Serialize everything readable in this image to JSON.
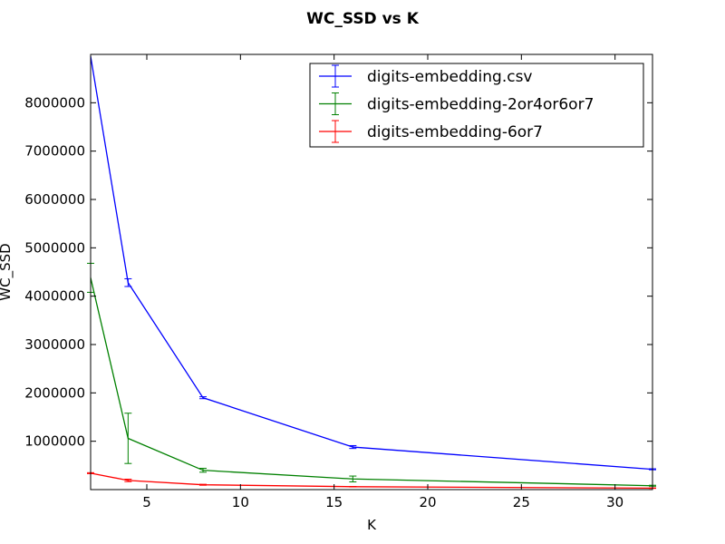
{
  "chart_data": {
    "type": "line",
    "title": "WC_SSD vs K",
    "xlabel": "K",
    "ylabel": "WC_SSD",
    "xlim": [
      2,
      32
    ],
    "ylim": [
      0,
      9000000
    ],
    "xticks": [
      5,
      10,
      15,
      20,
      25,
      30
    ],
    "yticks": [
      1000000,
      2000000,
      3000000,
      4000000,
      5000000,
      6000000,
      7000000,
      8000000
    ],
    "xtick_labels": [
      "5",
      "10",
      "15",
      "20",
      "25",
      "30"
    ],
    "ytick_labels": [
      "1000000",
      "2000000",
      "3000000",
      "4000000",
      "5000000",
      "6000000",
      "7000000",
      "8000000"
    ],
    "grid": false,
    "legend_position": "top-right",
    "x": [
      2,
      4,
      8,
      16,
      32
    ],
    "series": [
      {
        "name": "digits-embedding.csv",
        "color": "#0000ff",
        "values": [
          8960000,
          4280000,
          1900000,
          880000,
          420000
        ],
        "errors": [
          0,
          80000,
          20000,
          30000,
          10000
        ]
      },
      {
        "name": "digits-embedding-2or4or6or7",
        "color": "#008000",
        "values": [
          4380000,
          1060000,
          400000,
          220000,
          80000
        ],
        "errors": [
          300000,
          520000,
          40000,
          60000,
          10000
        ]
      },
      {
        "name": "digits-embedding-6or7",
        "color": "#ff0000",
        "values": [
          340000,
          190000,
          100000,
          60000,
          30000
        ],
        "errors": [
          10000,
          25000,
          10000,
          5000,
          5000
        ]
      }
    ]
  }
}
